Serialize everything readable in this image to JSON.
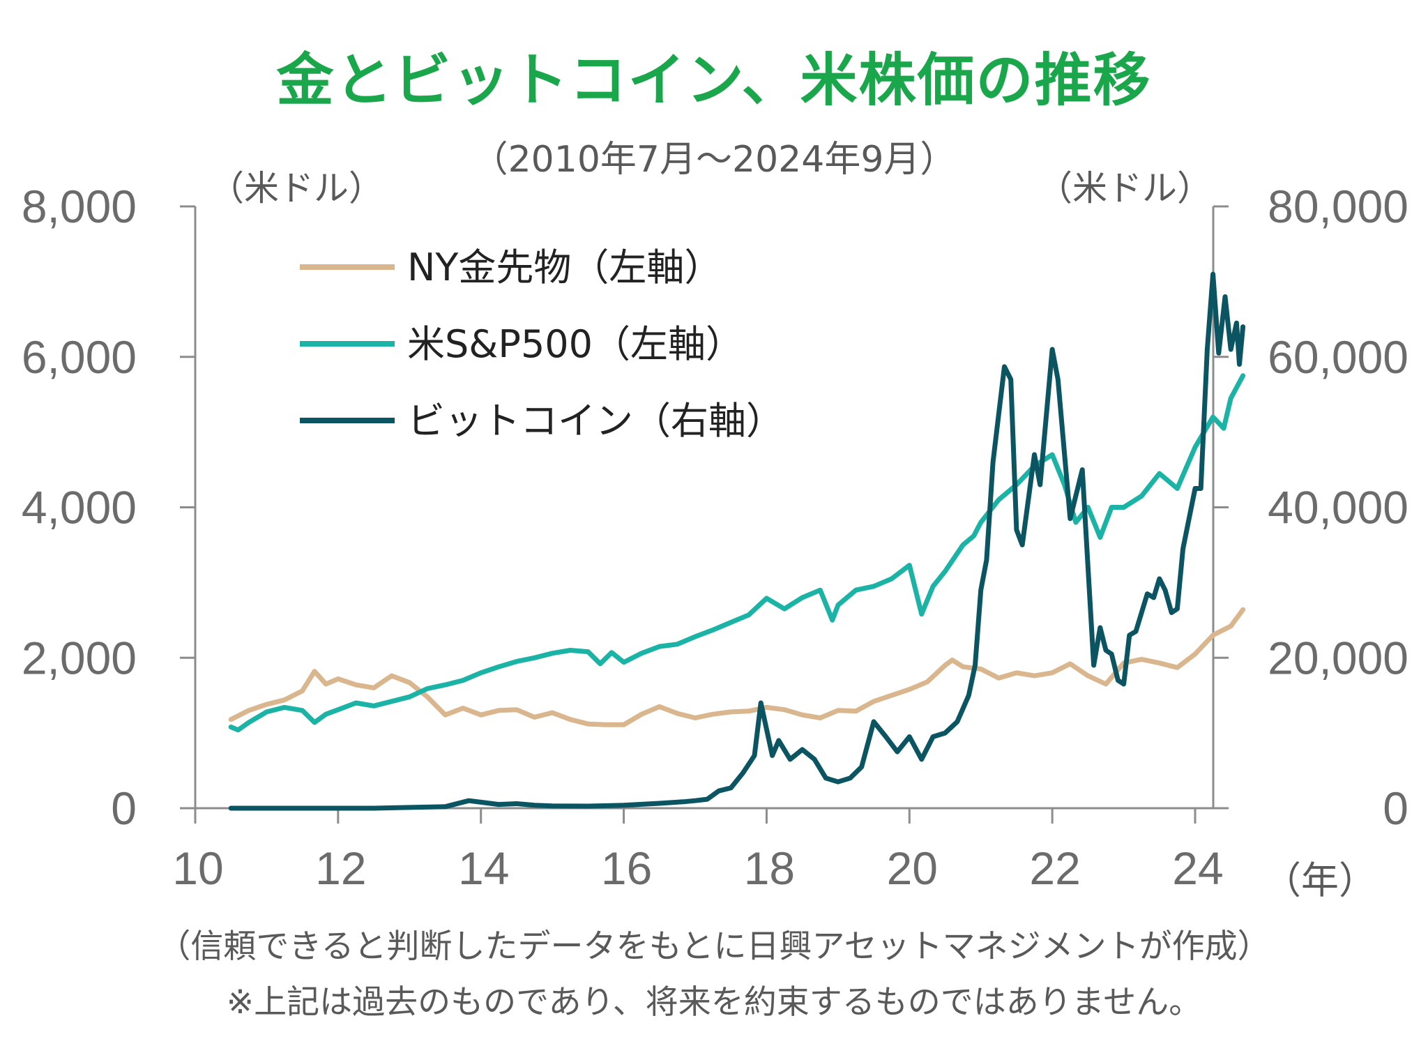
{
  "header": {
    "title": "金とビットコイン、米株価の推移",
    "subtitle": "（2010年7月～2024年9月）"
  },
  "footer": {
    "line1": "（信頼できると判断したデータをもとに日興アセットマネジメントが作成）",
    "line2": "※上記は過去のものであり、将来を約束するものではありません。"
  },
  "colors": {
    "title": "#1aa64a",
    "gold": "#d9b68d",
    "sp500": "#1bb3a5",
    "bitcoin": "#0b5563",
    "axis": "#8c8c8c",
    "text": "#595959"
  },
  "chart_data": {
    "type": "line",
    "title": "金とビットコイン、米株価の推移",
    "subtitle": "（2010年7月～2024年9月）",
    "x_unit_label": "（年）",
    "left_axis": {
      "unit_label": "（米ドル）",
      "range": [
        0,
        8000
      ],
      "ticks": [
        "0",
        "2,000",
        "4,000",
        "6,000",
        "8,000"
      ]
    },
    "right_axis": {
      "unit_label": "（米ドル）",
      "range": [
        0,
        80000
      ],
      "ticks": [
        "0",
        "20,000",
        "40,000",
        "60,000",
        "80,000"
      ]
    },
    "x_axis": {
      "range": [
        2010.5,
        2024.67
      ],
      "tick_values": [
        2010,
        2012,
        2014,
        2016,
        2018,
        2020,
        2022,
        2024
      ],
      "tick_labels": [
        "10",
        "12",
        "14",
        "16",
        "18",
        "20",
        "22",
        "24"
      ]
    },
    "legend_position": "top-left",
    "grid": false,
    "series": [
      {
        "name": "NY金先物（左軸）",
        "axis": "left",
        "color": "#d9b68d",
        "points": [
          [
            2010.5,
            1180
          ],
          [
            2010.75,
            1300
          ],
          [
            2011.0,
            1380
          ],
          [
            2011.25,
            1440
          ],
          [
            2011.5,
            1560
          ],
          [
            2011.67,
            1820
          ],
          [
            2011.83,
            1650
          ],
          [
            2012.0,
            1720
          ],
          [
            2012.25,
            1640
          ],
          [
            2012.5,
            1600
          ],
          [
            2012.75,
            1760
          ],
          [
            2013.0,
            1670
          ],
          [
            2013.25,
            1480
          ],
          [
            2013.5,
            1240
          ],
          [
            2013.75,
            1330
          ],
          [
            2014.0,
            1240
          ],
          [
            2014.25,
            1300
          ],
          [
            2014.5,
            1310
          ],
          [
            2014.75,
            1210
          ],
          [
            2015.0,
            1270
          ],
          [
            2015.25,
            1180
          ],
          [
            2015.5,
            1120
          ],
          [
            2015.75,
            1110
          ],
          [
            2016.0,
            1110
          ],
          [
            2016.25,
            1250
          ],
          [
            2016.5,
            1350
          ],
          [
            2016.75,
            1260
          ],
          [
            2017.0,
            1200
          ],
          [
            2017.25,
            1250
          ],
          [
            2017.5,
            1280
          ],
          [
            2017.75,
            1290
          ],
          [
            2018.0,
            1340
          ],
          [
            2018.25,
            1310
          ],
          [
            2018.5,
            1240
          ],
          [
            2018.75,
            1200
          ],
          [
            2019.0,
            1300
          ],
          [
            2019.25,
            1290
          ],
          [
            2019.5,
            1420
          ],
          [
            2019.75,
            1500
          ],
          [
            2020.0,
            1580
          ],
          [
            2020.25,
            1680
          ],
          [
            2020.5,
            1900
          ],
          [
            2020.6,
            1970
          ],
          [
            2020.75,
            1880
          ],
          [
            2021.0,
            1850
          ],
          [
            2021.25,
            1730
          ],
          [
            2021.5,
            1800
          ],
          [
            2021.75,
            1760
          ],
          [
            2022.0,
            1800
          ],
          [
            2022.25,
            1920
          ],
          [
            2022.5,
            1760
          ],
          [
            2022.75,
            1650
          ],
          [
            2023.0,
            1930
          ],
          [
            2023.25,
            1980
          ],
          [
            2023.5,
            1930
          ],
          [
            2023.75,
            1870
          ],
          [
            2024.0,
            2050
          ],
          [
            2024.25,
            2300
          ],
          [
            2024.5,
            2420
          ],
          [
            2024.67,
            2640
          ]
        ]
      },
      {
        "name": "米S&P500（左軸）",
        "axis": "left",
        "color": "#1bb3a5",
        "points": [
          [
            2010.5,
            1080
          ],
          [
            2010.6,
            1040
          ],
          [
            2010.75,
            1140
          ],
          [
            2011.0,
            1280
          ],
          [
            2011.25,
            1340
          ],
          [
            2011.5,
            1300
          ],
          [
            2011.67,
            1140
          ],
          [
            2011.83,
            1250
          ],
          [
            2012.0,
            1310
          ],
          [
            2012.25,
            1400
          ],
          [
            2012.5,
            1360
          ],
          [
            2012.75,
            1420
          ],
          [
            2013.0,
            1480
          ],
          [
            2013.25,
            1590
          ],
          [
            2013.5,
            1640
          ],
          [
            2013.75,
            1700
          ],
          [
            2014.0,
            1800
          ],
          [
            2014.25,
            1880
          ],
          [
            2014.5,
            1950
          ],
          [
            2014.75,
            2000
          ],
          [
            2015.0,
            2060
          ],
          [
            2015.25,
            2100
          ],
          [
            2015.5,
            2080
          ],
          [
            2015.67,
            1920
          ],
          [
            2015.83,
            2070
          ],
          [
            2016.0,
            1940
          ],
          [
            2016.25,
            2060
          ],
          [
            2016.5,
            2150
          ],
          [
            2016.75,
            2180
          ],
          [
            2017.0,
            2280
          ],
          [
            2017.25,
            2370
          ],
          [
            2017.5,
            2470
          ],
          [
            2017.75,
            2570
          ],
          [
            2018.0,
            2790
          ],
          [
            2018.25,
            2650
          ],
          [
            2018.5,
            2800
          ],
          [
            2018.75,
            2900
          ],
          [
            2018.92,
            2500
          ],
          [
            2019.0,
            2700
          ],
          [
            2019.25,
            2900
          ],
          [
            2019.5,
            2950
          ],
          [
            2019.75,
            3050
          ],
          [
            2020.0,
            3230
          ],
          [
            2020.17,
            2580
          ],
          [
            2020.33,
            2950
          ],
          [
            2020.5,
            3150
          ],
          [
            2020.75,
            3500
          ],
          [
            2020.9,
            3620
          ],
          [
            2021.0,
            3800
          ],
          [
            2021.25,
            4100
          ],
          [
            2021.5,
            4300
          ],
          [
            2021.75,
            4550
          ],
          [
            2022.0,
            4700
          ],
          [
            2022.17,
            4300
          ],
          [
            2022.33,
            3800
          ],
          [
            2022.5,
            4000
          ],
          [
            2022.67,
            3600
          ],
          [
            2022.83,
            4000
          ],
          [
            2023.0,
            4000
          ],
          [
            2023.25,
            4150
          ],
          [
            2023.5,
            4450
          ],
          [
            2023.75,
            4250
          ],
          [
            2024.0,
            4800
          ],
          [
            2024.25,
            5200
          ],
          [
            2024.4,
            5050
          ],
          [
            2024.5,
            5450
          ],
          [
            2024.67,
            5750
          ]
        ]
      },
      {
        "name": "ビットコイン（右軸）",
        "axis": "right",
        "color": "#0b5563",
        "points": [
          [
            2010.5,
            0
          ],
          [
            2011.0,
            0
          ],
          [
            2011.5,
            0
          ],
          [
            2012.0,
            0
          ],
          [
            2012.5,
            0
          ],
          [
            2013.0,
            100
          ],
          [
            2013.5,
            200
          ],
          [
            2013.83,
            1000
          ],
          [
            2014.0,
            800
          ],
          [
            2014.25,
            500
          ],
          [
            2014.5,
            600
          ],
          [
            2014.75,
            400
          ],
          [
            2015.0,
            300
          ],
          [
            2015.5,
            280
          ],
          [
            2015.83,
            350
          ],
          [
            2016.0,
            400
          ],
          [
            2016.5,
            650
          ],
          [
            2016.83,
            850
          ],
          [
            2017.0,
            1000
          ],
          [
            2017.17,
            1200
          ],
          [
            2017.33,
            2300
          ],
          [
            2017.5,
            2700
          ],
          [
            2017.67,
            4700
          ],
          [
            2017.83,
            7000
          ],
          [
            2017.92,
            14000
          ],
          [
            2018.0,
            10500
          ],
          [
            2018.08,
            7000
          ],
          [
            2018.17,
            9000
          ],
          [
            2018.33,
            6500
          ],
          [
            2018.5,
            7800
          ],
          [
            2018.67,
            6500
          ],
          [
            2018.83,
            4000
          ],
          [
            2019.0,
            3500
          ],
          [
            2019.17,
            4000
          ],
          [
            2019.33,
            5500
          ],
          [
            2019.5,
            11500
          ],
          [
            2019.67,
            9500
          ],
          [
            2019.83,
            7500
          ],
          [
            2020.0,
            9500
          ],
          [
            2020.17,
            6500
          ],
          [
            2020.33,
            9500
          ],
          [
            2020.5,
            10000
          ],
          [
            2020.67,
            11500
          ],
          [
            2020.83,
            15000
          ],
          [
            2020.92,
            19000
          ],
          [
            2021.0,
            29000
          ],
          [
            2021.08,
            33000
          ],
          [
            2021.17,
            46000
          ],
          [
            2021.33,
            58700
          ],
          [
            2021.42,
            57000
          ],
          [
            2021.5,
            37000
          ],
          [
            2021.58,
            35000
          ],
          [
            2021.75,
            47000
          ],
          [
            2021.83,
            43000
          ],
          [
            2022.0,
            61000
          ],
          [
            2022.08,
            57000
          ],
          [
            2022.25,
            38500
          ],
          [
            2022.42,
            45000
          ],
          [
            2022.5,
            32000
          ],
          [
            2022.58,
            19000
          ],
          [
            2022.67,
            24000
          ],
          [
            2022.75,
            21000
          ],
          [
            2022.83,
            20500
          ],
          [
            2022.92,
            17000
          ],
          [
            2023.0,
            16500
          ],
          [
            2023.08,
            23000
          ],
          [
            2023.17,
            23500
          ],
          [
            2023.33,
            28500
          ],
          [
            2023.42,
            28000
          ],
          [
            2023.5,
            30500
          ],
          [
            2023.58,
            29000
          ],
          [
            2023.67,
            26000
          ],
          [
            2023.75,
            26500
          ],
          [
            2023.83,
            34500
          ],
          [
            2024.0,
            42500
          ],
          [
            2024.08,
            42500
          ],
          [
            2024.17,
            61000
          ],
          [
            2024.25,
            71000
          ],
          [
            2024.33,
            60500
          ],
          [
            2024.42,
            68000
          ],
          [
            2024.5,
            61000
          ],
          [
            2024.58,
            64500
          ],
          [
            2024.62,
            59000
          ],
          [
            2024.67,
            64000
          ]
        ]
      }
    ]
  }
}
